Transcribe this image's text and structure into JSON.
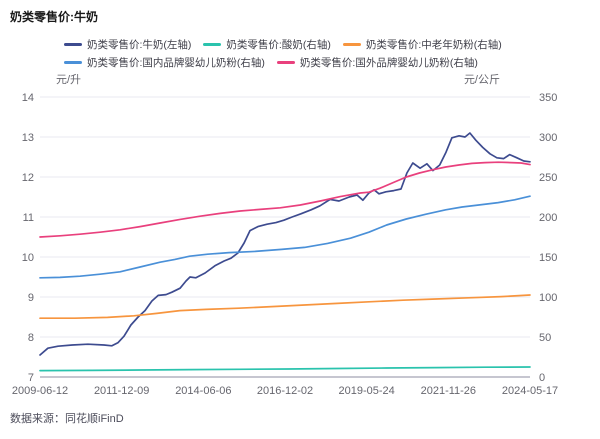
{
  "page": {
    "title": "奶类零售价:牛奶",
    "source": "数据来源：同花顺iFinD"
  },
  "chart_data": {
    "type": "line",
    "title": "奶类零售价:牛奶",
    "grid": true,
    "legend_position": "top",
    "left_axis": {
      "label": "元/升",
      "min": 7,
      "max": 14,
      "ticks": [
        14,
        13,
        12,
        11,
        10,
        9,
        8,
        7
      ]
    },
    "right_axis": {
      "label": "元/公斤",
      "min": 0,
      "max": 350,
      "ticks": [
        350,
        300,
        250,
        200,
        150,
        100,
        50,
        0
      ]
    },
    "x_ticks": [
      "2009-06-12",
      "2011-12-09",
      "2014-06-06",
      "2016-12-02",
      "2019-05-24",
      "2021-11-26",
      "2024-05-17"
    ],
    "x_range": [
      2009.44,
      2024.37
    ],
    "colors": {
      "grid": "#e9e9f0",
      "axis": "#b3b3c0",
      "tick_text": "#66666e"
    },
    "series": [
      {
        "name": "奶类零售价:牛奶(左轴)",
        "axis": "left",
        "color": "#3d4b8f",
        "unit": "元/升",
        "points": [
          [
            2009.44,
            7.55
          ],
          [
            2009.68,
            7.72
          ],
          [
            2009.99,
            7.77
          ],
          [
            2010.42,
            7.8
          ],
          [
            2010.9,
            7.82
          ],
          [
            2011.39,
            7.8
          ],
          [
            2011.63,
            7.78
          ],
          [
            2011.82,
            7.86
          ],
          [
            2012.0,
            8.02
          ],
          [
            2012.21,
            8.3
          ],
          [
            2012.43,
            8.5
          ],
          [
            2012.64,
            8.66
          ],
          [
            2012.85,
            8.9
          ],
          [
            2013.04,
            9.04
          ],
          [
            2013.28,
            9.06
          ],
          [
            2013.46,
            9.12
          ],
          [
            2013.71,
            9.22
          ],
          [
            2013.89,
            9.4
          ],
          [
            2014.01,
            9.5
          ],
          [
            2014.19,
            9.48
          ],
          [
            2014.47,
            9.6
          ],
          [
            2014.77,
            9.78
          ],
          [
            2015.05,
            9.9
          ],
          [
            2015.26,
            9.97
          ],
          [
            2015.47,
            10.1
          ],
          [
            2015.66,
            10.35
          ],
          [
            2015.84,
            10.66
          ],
          [
            2016.08,
            10.76
          ],
          [
            2016.36,
            10.82
          ],
          [
            2016.63,
            10.86
          ],
          [
            2016.87,
            10.92
          ],
          [
            2017.12,
            11.0
          ],
          [
            2017.39,
            11.08
          ],
          [
            2017.7,
            11.18
          ],
          [
            2017.97,
            11.28
          ],
          [
            2018.28,
            11.44
          ],
          [
            2018.55,
            11.4
          ],
          [
            2018.86,
            11.5
          ],
          [
            2019.1,
            11.55
          ],
          [
            2019.28,
            11.42
          ],
          [
            2019.46,
            11.6
          ],
          [
            2019.62,
            11.68
          ],
          [
            2019.77,
            11.58
          ],
          [
            2019.98,
            11.63
          ],
          [
            2020.22,
            11.66
          ],
          [
            2020.44,
            11.7
          ],
          [
            2020.62,
            12.1
          ],
          [
            2020.8,
            12.35
          ],
          [
            2021.02,
            12.22
          ],
          [
            2021.23,
            12.33
          ],
          [
            2021.41,
            12.16
          ],
          [
            2021.62,
            12.3
          ],
          [
            2021.81,
            12.62
          ],
          [
            2021.99,
            12.98
          ],
          [
            2022.21,
            13.03
          ],
          [
            2022.39,
            13.0
          ],
          [
            2022.54,
            13.1
          ],
          [
            2022.72,
            12.92
          ],
          [
            2022.93,
            12.74
          ],
          [
            2023.15,
            12.58
          ],
          [
            2023.36,
            12.48
          ],
          [
            2023.57,
            12.46
          ],
          [
            2023.75,
            12.56
          ],
          [
            2023.97,
            12.48
          ],
          [
            2024.18,
            12.4
          ],
          [
            2024.37,
            12.38
          ]
        ]
      },
      {
        "name": "奶类零售价:酸奶(右轴)",
        "axis": "right",
        "color": "#2ac3ad",
        "unit": "元/公斤",
        "points": [
          [
            2009.44,
            8.0
          ],
          [
            2011.0,
            8.3
          ],
          [
            2012.5,
            8.7
          ],
          [
            2014.0,
            9.2
          ],
          [
            2015.5,
            9.6
          ],
          [
            2017.0,
            10.0
          ],
          [
            2018.5,
            10.6
          ],
          [
            2020.0,
            11.2
          ],
          [
            2021.5,
            11.8
          ],
          [
            2023.0,
            12.3
          ],
          [
            2024.37,
            12.5
          ]
        ]
      },
      {
        "name": "奶类零售价:中老年奶粉(右轴)",
        "axis": "right",
        "color": "#f7953e",
        "unit": "元/公斤",
        "points": [
          [
            2009.44,
            73.5
          ],
          [
            2010.5,
            73.5
          ],
          [
            2011.5,
            74.5
          ],
          [
            2012.3,
            76.5
          ],
          [
            2013.0,
            79.5
          ],
          [
            2013.7,
            83.0
          ],
          [
            2014.5,
            84.5
          ],
          [
            2015.5,
            86.0
          ],
          [
            2016.5,
            88.0
          ],
          [
            2017.5,
            90.0
          ],
          [
            2018.5,
            92.0
          ],
          [
            2019.46,
            94.0
          ],
          [
            2020.5,
            96.0
          ],
          [
            2021.5,
            97.5
          ],
          [
            2022.5,
            99.0
          ],
          [
            2023.5,
            100.5
          ],
          [
            2024.37,
            102.5
          ]
        ]
      },
      {
        "name": "奶类零售价:国内品牌婴幼儿奶粉(右轴)",
        "axis": "right",
        "color": "#4a90d8",
        "unit": "元/公斤",
        "points": [
          [
            2009.44,
            124
          ],
          [
            2010.05,
            124.5
          ],
          [
            2010.66,
            126
          ],
          [
            2011.27,
            128.5
          ],
          [
            2011.88,
            131.5
          ],
          [
            2012.49,
            137.5
          ],
          [
            2013.1,
            143.5
          ],
          [
            2013.55,
            147
          ],
          [
            2014.0,
            151
          ],
          [
            2014.55,
            153.5
          ],
          [
            2015.2,
            155.5
          ],
          [
            2016.0,
            157
          ],
          [
            2016.8,
            159.5
          ],
          [
            2017.5,
            162
          ],
          [
            2018.2,
            167
          ],
          [
            2018.9,
            173.5
          ],
          [
            2019.46,
            181
          ],
          [
            2020.0,
            190
          ],
          [
            2020.6,
            197.5
          ],
          [
            2021.2,
            203.5
          ],
          [
            2021.8,
            209
          ],
          [
            2022.3,
            212.5
          ],
          [
            2022.9,
            215.5
          ],
          [
            2023.4,
            218
          ],
          [
            2023.9,
            221.5
          ],
          [
            2024.37,
            226
          ]
        ]
      },
      {
        "name": "奶类零售价:国外品牌婴幼儿奶粉(右轴)",
        "axis": "right",
        "color": "#e9407d",
        "unit": "元/公斤",
        "points": [
          [
            2009.44,
            175
          ],
          [
            2010.05,
            176.5
          ],
          [
            2010.66,
            178.5
          ],
          [
            2011.27,
            181
          ],
          [
            2011.88,
            184
          ],
          [
            2012.49,
            188
          ],
          [
            2013.1,
            192.5
          ],
          [
            2013.71,
            197
          ],
          [
            2014.32,
            201
          ],
          [
            2014.93,
            204.5
          ],
          [
            2015.54,
            207.5
          ],
          [
            2016.15,
            209.5
          ],
          [
            2016.76,
            211.5
          ],
          [
            2017.37,
            215
          ],
          [
            2017.98,
            220
          ],
          [
            2018.59,
            225.5
          ],
          [
            2019.2,
            230
          ],
          [
            2019.46,
            231
          ],
          [
            2019.8,
            236
          ],
          [
            2020.2,
            243
          ],
          [
            2020.6,
            250
          ],
          [
            2021.0,
            255
          ],
          [
            2021.4,
            259
          ],
          [
            2021.8,
            262.5
          ],
          [
            2022.2,
            265
          ],
          [
            2022.6,
            267
          ],
          [
            2023.0,
            268
          ],
          [
            2023.4,
            268.5
          ],
          [
            2023.8,
            268
          ],
          [
            2024.1,
            267.5
          ],
          [
            2024.37,
            265.5
          ]
        ]
      }
    ]
  }
}
